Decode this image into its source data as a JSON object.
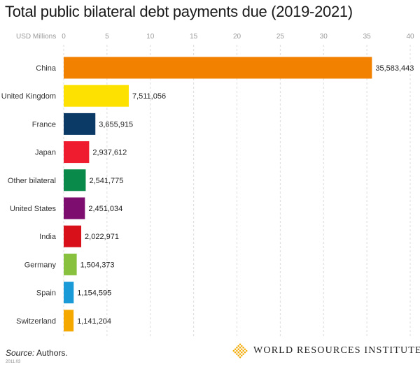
{
  "header": {
    "title": "Total public bilateral debt payments due (2019-2021)"
  },
  "chart_data": {
    "type": "bar",
    "orientation": "horizontal",
    "title": "Total public bilateral debt payments due (2019-2021)",
    "xlabel": "USD Millions",
    "ylabel": "",
    "xlim": [
      0,
      40
    ],
    "xticks": [
      "0",
      "5",
      "10",
      "15",
      "20",
      "25",
      "30",
      "35",
      "40"
    ],
    "grid": true,
    "categories": [
      "China",
      "United Kingdom",
      "France",
      "Japan",
      "Other bilateral",
      "United States",
      "India",
      "Germany",
      "Spain",
      "Switzerland"
    ],
    "values": [
      35.583443,
      7.511056,
      3.655915,
      2.937612,
      2.541775,
      2.451034,
      2.022971,
      1.504373,
      1.154595,
      1.141204
    ],
    "value_labels": [
      "35,583,443",
      "7,511,056",
      "3,655,915",
      "2,937,612",
      "2,541,775",
      "2,451,034",
      "2,022,971",
      "1,504,373",
      "1,154,595",
      "1,141,204"
    ],
    "colors": [
      "#f28100",
      "#fde100",
      "#0b3a66",
      "#ee1c2e",
      "#0a8a4a",
      "#7d0d6f",
      "#d7101a",
      "#88c13e",
      "#1a9ad6",
      "#f5a800"
    ]
  },
  "footer": {
    "source_label": "Source:",
    "source_text": " Authors.",
    "date_code": "2011.03",
    "org_name": "WORLD RESOURCES INSTITUTE"
  },
  "logo": {
    "icon": "wri-diamond-logo-icon",
    "color": "#f2a900"
  }
}
